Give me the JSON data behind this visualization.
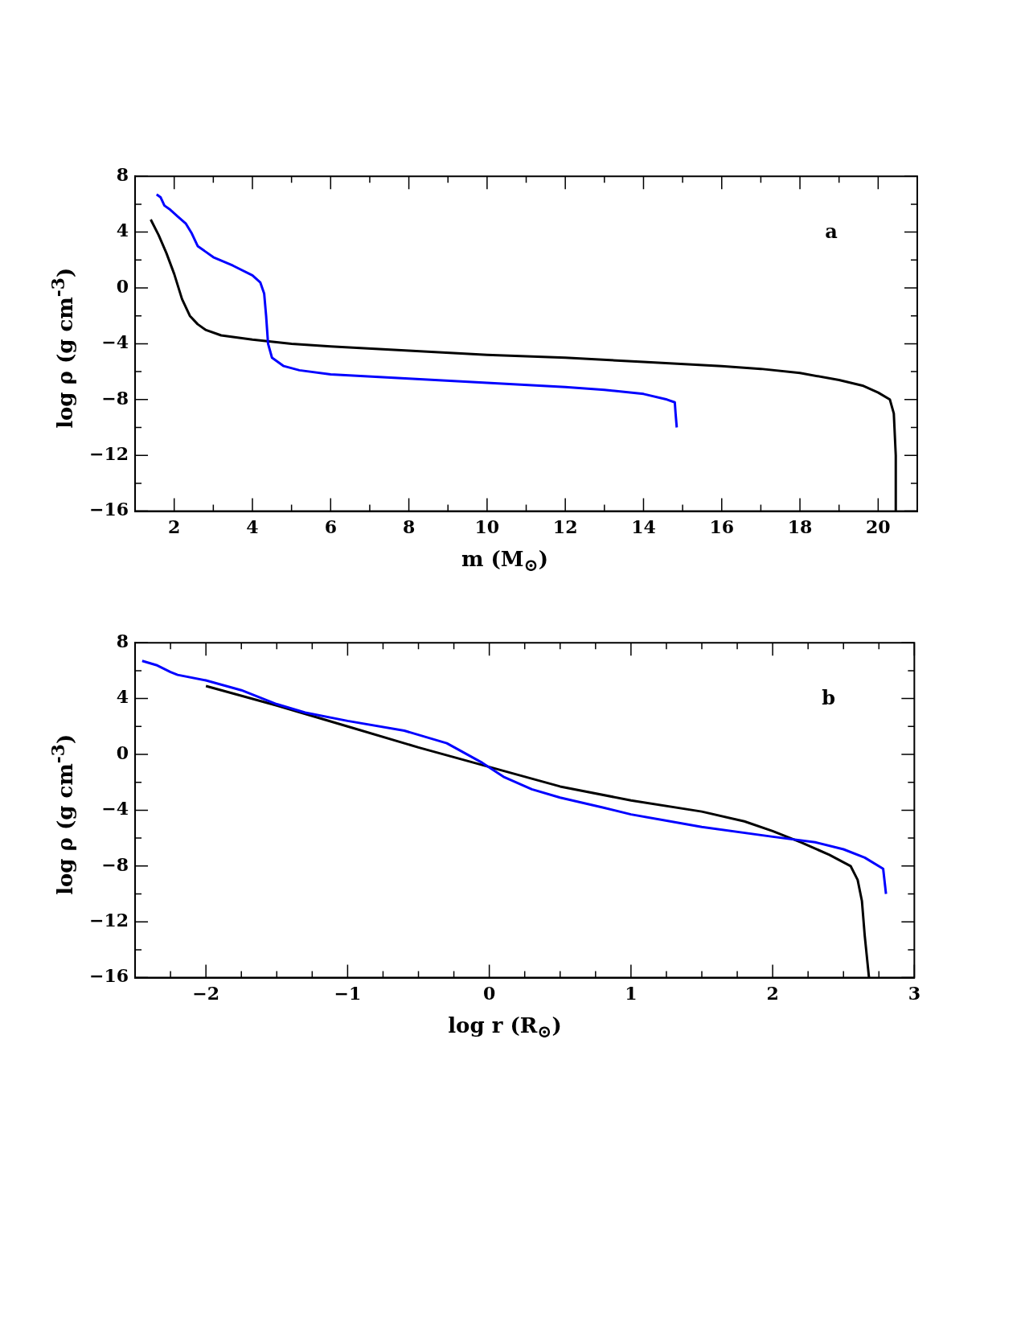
{
  "chart_data": [
    {
      "type": "line",
      "xlabel": "m (M$_{⊙}$)",
      "ylabel": "log ρ (g cm$^{-3}$)",
      "annotations": [
        "a"
      ],
      "marker": "none",
      "line_style": "solid",
      "grid": false,
      "legend": false,
      "xlim": [
        1,
        21
      ],
      "ylim": [
        -16,
        8
      ],
      "xticks": [
        {
          "value": 1,
          "label": null
        },
        2,
        {
          "value": 3,
          "label": null
        },
        4,
        {
          "value": 5,
          "label": null
        },
        6,
        {
          "value": 7,
          "label": null
        },
        8,
        {
          "value": 9,
          "label": null
        },
        10,
        {
          "value": 11,
          "label": null
        },
        12,
        {
          "value": 13,
          "label": null
        },
        14,
        {
          "value": 15,
          "label": null
        },
        16,
        {
          "value": 17,
          "label": null
        },
        18,
        {
          "value": 19,
          "label": null
        },
        20,
        {
          "value": 21,
          "label": null
        }
      ],
      "yticks": [
        -16,
        {
          "value": -14,
          "label": null
        },
        -12,
        {
          "value": -10,
          "label": null
        },
        -8,
        {
          "value": -6,
          "label": null
        },
        -4,
        {
          "value": -2,
          "label": null
        },
        0,
        {
          "value": 2,
          "label": null
        },
        4,
        {
          "value": 6,
          "label": null
        },
        8
      ],
      "series": [
        {
          "color": "#0000ff",
          "x": [
            1.55,
            1.65,
            1.75,
            1.9,
            2.1,
            2.3,
            2.45,
            2.6,
            2.8,
            3.0,
            3.5,
            4.0,
            4.2,
            4.3,
            4.35,
            4.4,
            4.5,
            4.8,
            5.2,
            6,
            8,
            10,
            12,
            13,
            14,
            14.6,
            14.8,
            14.82,
            14.85
          ],
          "values": [
            6.7,
            6.5,
            5.9,
            5.6,
            5.1,
            4.6,
            3.9,
            3.0,
            2.6,
            2.2,
            1.6,
            0.9,
            0.4,
            -0.4,
            -2,
            -4,
            -5.0,
            -5.6,
            -5.9,
            -6.2,
            -6.5,
            -6.8,
            -7.1,
            -7.3,
            -7.6,
            -8.0,
            -8.2,
            -9,
            -10
          ]
        },
        {
          "color": "#000000",
          "x": [
            1.4,
            1.6,
            1.8,
            2.0,
            2.2,
            2.4,
            2.6,
            2.8,
            3.2,
            4,
            5,
            6,
            8,
            10,
            12,
            14,
            16,
            17,
            18,
            19,
            19.6,
            20,
            20.3,
            20.4,
            20.45,
            20.45
          ],
          "values": [
            4.9,
            3.8,
            2.5,
            1.0,
            -0.8,
            -2.0,
            -2.6,
            -3.0,
            -3.4,
            -3.7,
            -4.0,
            -4.2,
            -4.5,
            -4.8,
            -5.0,
            -5.3,
            -5.6,
            -5.8,
            -6.1,
            -6.6,
            -7.0,
            -7.5,
            -8.0,
            -9,
            -12,
            -16
          ]
        }
      ]
    },
    {
      "type": "line",
      "xlabel": "log r (R$_{⊙}$)",
      "ylabel": "log ρ (g cm$^{-3}$)",
      "annotations": [
        "b"
      ],
      "marker": "none",
      "line_style": "solid",
      "grid": false,
      "legend": false,
      "xlim": [
        -2.5,
        3
      ],
      "ylim": [
        -16,
        8
      ],
      "xticks": [
        {
          "value": -2.5,
          "label": null
        },
        {
          "value": -2.25,
          "label": null
        },
        -2,
        {
          "value": -1.75,
          "label": null
        },
        {
          "value": -1.5,
          "label": null
        },
        {
          "value": -1.25,
          "label": null
        },
        -1,
        {
          "value": -0.75,
          "label": null
        },
        {
          "value": -0.5,
          "label": null
        },
        {
          "value": -0.25,
          "label": null
        },
        0,
        {
          "value": 0.25,
          "label": null
        },
        {
          "value": 0.5,
          "label": null
        },
        {
          "value": 0.75,
          "label": null
        },
        1,
        {
          "value": 1.25,
          "label": null
        },
        {
          "value": 1.5,
          "label": null
        },
        {
          "value": 1.75,
          "label": null
        },
        2,
        {
          "value": 2.25,
          "label": null
        },
        {
          "value": 2.5,
          "label": null
        },
        {
          "value": 2.75,
          "label": null
        },
        3
      ],
      "yticks": [
        -16,
        {
          "value": -14,
          "label": null
        },
        -12,
        {
          "value": -10,
          "label": null
        },
        -8,
        {
          "value": -6,
          "label": null
        },
        -4,
        {
          "value": -2,
          "label": null
        },
        0,
        {
          "value": 2,
          "label": null
        },
        4,
        {
          "value": 6,
          "label": null
        },
        8
      ],
      "series": [
        {
          "color": "#0000ff",
          "x": [
            -2.45,
            -2.35,
            -2.25,
            -2.2,
            -2,
            -1.75,
            -1.5,
            -1.3,
            -1,
            -0.6,
            -0.3,
            -0.05,
            0.1,
            0.3,
            0.5,
            0.8,
            1,
            1.5,
            2,
            2.3,
            2.5,
            2.65,
            2.78,
            2.8
          ],
          "values": [
            6.7,
            6.4,
            5.9,
            5.7,
            5.3,
            4.6,
            3.6,
            3.0,
            2.4,
            1.7,
            0.8,
            -0.6,
            -1.6,
            -2.5,
            -3.1,
            -3.8,
            -4.3,
            -5.2,
            -5.9,
            -6.3,
            -6.8,
            -7.4,
            -8.2,
            -10
          ]
        },
        {
          "color": "#000000",
          "x": [
            -2,
            -1.5,
            -1,
            -0.5,
            0,
            0.5,
            1,
            1.5,
            1.8,
            2.0,
            2.2,
            2.4,
            2.55,
            2.6,
            2.63,
            2.65,
            2.68
          ],
          "values": [
            4.9,
            3.5,
            2.0,
            0.5,
            -0.9,
            -2.3,
            -3.3,
            -4.1,
            -4.8,
            -5.5,
            -6.3,
            -7.2,
            -8.0,
            -9,
            -10.5,
            -13,
            -16
          ]
        }
      ]
    }
  ]
}
